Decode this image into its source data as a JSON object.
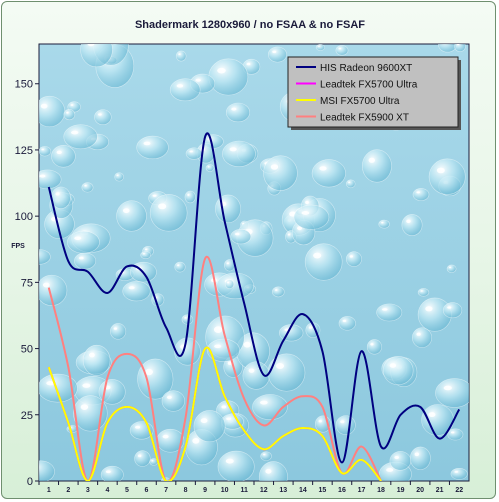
{
  "chart_data": {
    "type": "line",
    "title": "Shadermark 1280x960 / no FSAA & no FSAF",
    "ylabel": "FPS",
    "xlabel": "",
    "ylim": [
      0,
      165
    ],
    "yticks": [
      0,
      25,
      50,
      75,
      100,
      125,
      150
    ],
    "categories": [
      "1",
      "2",
      "3",
      "4",
      "5",
      "6",
      "7",
      "8",
      "9",
      "10",
      "11",
      "12",
      "13",
      "14",
      "15",
      "16",
      "17",
      "18",
      "19",
      "20",
      "21",
      "22"
    ],
    "grid": false,
    "legend_position": "top-right",
    "series": [
      {
        "name": "HIS Radeon 9600XT",
        "color": "#000080",
        "values": [
          111,
          83,
          79,
          71,
          81,
          77,
          58,
          52,
          130,
          98,
          67,
          40,
          53,
          63,
          49,
          7,
          49,
          13,
          25,
          28,
          16,
          27
        ]
      },
      {
        "name": "Leadtek FX5700 Ultra",
        "color": "#ff00ff",
        "values": [
          43,
          22,
          0,
          22,
          28,
          22,
          0,
          13,
          50,
          32,
          19,
          12,
          17,
          20,
          17,
          3,
          8,
          0,
          null,
          null,
          null,
          null
        ]
      },
      {
        "name": "MSI FX5700 Ultra",
        "color": "#ffff00",
        "values": [
          43,
          22,
          0,
          22,
          28,
          22,
          0,
          13,
          50,
          32,
          19,
          12,
          17,
          20,
          17,
          3,
          8,
          0,
          null,
          null,
          null,
          null
        ]
      },
      {
        "name": "Leadtek FX5900 XT",
        "color": "#ff8080",
        "values": [
          73,
          43,
          0,
          39,
          48,
          39,
          0,
          24,
          84,
          55,
          31,
          21,
          28,
          32,
          28,
          3,
          13,
          0,
          null,
          null,
          null,
          null
        ]
      }
    ]
  }
}
